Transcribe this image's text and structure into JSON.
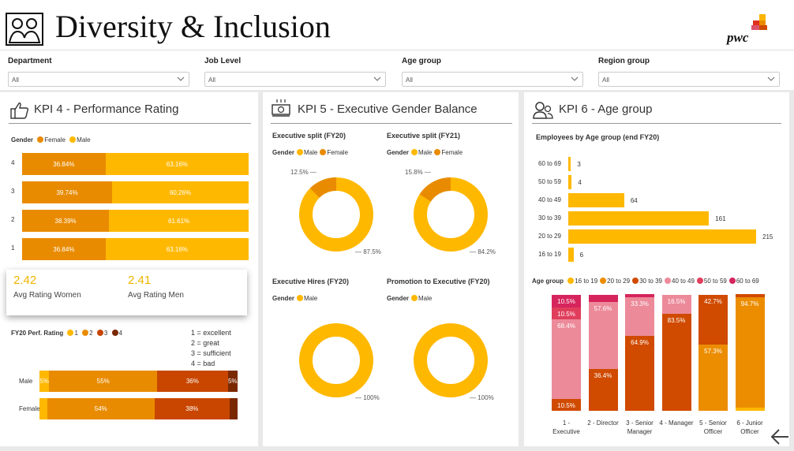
{
  "header": {
    "title": "Diversity & Inclusion",
    "brand": "pwc"
  },
  "filters": [
    {
      "label": "Department",
      "value": "All"
    },
    {
      "label": "Job Level",
      "value": "All"
    },
    {
      "label": "Age group",
      "value": "All"
    },
    {
      "label": "Region group",
      "value": "All"
    }
  ],
  "kpi4": {
    "title": "KPI 4 - Performance Rating",
    "legend_title": "Gender",
    "legend": [
      "Female",
      "Male"
    ],
    "colors": {
      "female": "#e98b00",
      "male": "#ffb800"
    },
    "rows": [
      {
        "label": "4",
        "female": "36.84%",
        "male": "63.16%",
        "female_pct": 36.84
      },
      {
        "label": "3",
        "female": "39.74%",
        "male": "60.26%",
        "female_pct": 39.74
      },
      {
        "label": "2",
        "female": "38.39%",
        "male": "61.61%",
        "female_pct": 38.39
      },
      {
        "label": "1",
        "female": "36.84%",
        "male": "63.16%",
        "female_pct": 36.84
      }
    ],
    "card": {
      "women_value": "2.42",
      "women_label": "Avg Rating Women",
      "men_value": "2.41",
      "men_label": "Avg Rating Men"
    },
    "perf_title": "FY20 Perf. Rating",
    "perf_legend": [
      "1",
      "2",
      "3",
      "4"
    ],
    "perf_colors": [
      "#ffb800",
      "#e98b00",
      "#c84600",
      "#7a2800"
    ],
    "perf_key": [
      "1 = excellent",
      "2 = great",
      "3 = sufficient",
      "4 = bad"
    ],
    "perf_rows": [
      {
        "label": "Male",
        "segments": [
          {
            "pct": 5,
            "text": "5%"
          },
          {
            "pct": 55,
            "text": "55%"
          },
          {
            "pct": 36,
            "text": "36%"
          },
          {
            "pct": 5,
            "text": "5%"
          }
        ]
      },
      {
        "label": "Female",
        "segments": [
          {
            "pct": 4,
            "text": ""
          },
          {
            "pct": 54,
            "text": "54%"
          },
          {
            "pct": 38,
            "text": "38%"
          },
          {
            "pct": 4,
            "text": ""
          }
        ]
      }
    ]
  },
  "kpi5": {
    "title": "KPI 5 - Executive Gender Balance",
    "donuts": [
      {
        "title": "Executive split (FY20)",
        "legend_title": "Gender",
        "legend": [
          "Male",
          "Female"
        ],
        "small_pct": 12.5,
        "small_label": "12.5%",
        "big_label": "87.5%"
      },
      {
        "title": "Executive split (FY21)",
        "legend_title": "Gender",
        "legend": [
          "Male",
          "Female"
        ],
        "small_pct": 15.8,
        "small_label": "15.8%",
        "big_label": "84.2%"
      },
      {
        "title": "Executive Hires (FY20)",
        "legend_title": "Gender",
        "legend": [
          "Male"
        ],
        "small_pct": 0,
        "small_label": "",
        "big_label": "100%"
      },
      {
        "title": "Promotion to Executive (FY20)",
        "legend_title": "Gender",
        "legend": [
          "Male"
        ],
        "small_pct": 0,
        "small_label": "",
        "big_label": "100%"
      }
    ]
  },
  "kpi6": {
    "title": "KPI 6 - Age group",
    "bar_title": "Employees by Age group (end FY20)",
    "bars": [
      {
        "label": "60 to 69",
        "value": 3
      },
      {
        "label": "50 to 59",
        "value": 4
      },
      {
        "label": "40 to 49",
        "value": 64
      },
      {
        "label": "30 to 39",
        "value": 161
      },
      {
        "label": "20 to 29",
        "value": 215
      },
      {
        "label": "16 to 19",
        "value": 6
      }
    ],
    "legend_title": "Age group",
    "legend": [
      "16 to 19",
      "20 to 29",
      "30 to 39",
      "40 to 49",
      "50 to 59",
      "60 to 69"
    ],
    "legend_colors": [
      "#ffb800",
      "#ec8d00",
      "#d04a00",
      "#ec8a9a",
      "#e03e5c",
      "#d6245c"
    ],
    "columns": [
      {
        "label": "1 - Executive",
        "segments": [
          {
            "age": "16 to 19",
            "pct": 0
          },
          {
            "age": "20 to 29",
            "pct": 0
          },
          {
            "age": "30 to 39",
            "pct": 10.5,
            "text": "10.5%"
          },
          {
            "age": "40 to 49",
            "pct": 68.4,
            "text": "68.4%"
          },
          {
            "age": "50 to 59",
            "pct": 10.5,
            "text": "10.5%"
          },
          {
            "age": "60 to 69",
            "pct": 10.5,
            "text": "10.5%"
          }
        ]
      },
      {
        "label": "2 - Director",
        "segments": [
          {
            "age": "16 to 19",
            "pct": 0
          },
          {
            "age": "20 to 29",
            "pct": 0
          },
          {
            "age": "30 to 39",
            "pct": 36.4,
            "text": "36.4%"
          },
          {
            "age": "40 to 49",
            "pct": 57.6,
            "text": "57.6%"
          },
          {
            "age": "50 to 59",
            "pct": 0
          },
          {
            "age": "60 to 69",
            "pct": 6.0
          }
        ]
      },
      {
        "label": "3 - Senior Manager",
        "segments": [
          {
            "age": "16 to 19",
            "pct": 0
          },
          {
            "age": "20 to 29",
            "pct": 0
          },
          {
            "age": "30 to 39",
            "pct": 64.9,
            "text": "64.9%"
          },
          {
            "age": "40 to 49",
            "pct": 33.3,
            "text": "33.3%"
          },
          {
            "age": "50 to 59",
            "pct": 0
          },
          {
            "age": "60 to 69",
            "pct": 1.8
          }
        ]
      },
      {
        "label": "4 - Manager",
        "segments": [
          {
            "age": "16 to 19",
            "pct": 0
          },
          {
            "age": "20 to 29",
            "pct": 0
          },
          {
            "age": "30 to 39",
            "pct": 83.5,
            "text": "83.5%"
          },
          {
            "age": "40 to 49",
            "pct": 16.5,
            "text": "16.5%"
          },
          {
            "age": "50 to 59",
            "pct": 0
          },
          {
            "age": "60 to 69",
            "pct": 0
          }
        ]
      },
      {
        "label": "5 - Senior Officer",
        "segments": [
          {
            "age": "16 to 19",
            "pct": 0
          },
          {
            "age": "20 to 29",
            "pct": 57.3,
            "text": "57.3%"
          },
          {
            "age": "30 to 39",
            "pct": 42.7,
            "text": "42.7%"
          },
          {
            "age": "40 to 49",
            "pct": 0
          },
          {
            "age": "50 to 59",
            "pct": 0
          },
          {
            "age": "60 to 69",
            "pct": 0
          }
        ]
      },
      {
        "label": "6 - Junior Officer",
        "segments": [
          {
            "age": "16 to 19",
            "pct": 3.0
          },
          {
            "age": "20 to 29",
            "pct": 94.7,
            "text": "94.7%"
          },
          {
            "age": "30 to 39",
            "pct": 2.3
          },
          {
            "age": "40 to 49",
            "pct": 0
          },
          {
            "age": "50 to 59",
            "pct": 0
          },
          {
            "age": "60 to 69",
            "pct": 0
          }
        ]
      }
    ]
  },
  "chart_data": [
    {
      "type": "bar",
      "title": "KPI 4 - Performance Rating",
      "categories": [
        "4",
        "3",
        "2",
        "1"
      ],
      "series": [
        {
          "name": "Female",
          "values": [
            36.84,
            39.74,
            38.39,
            36.84
          ]
        },
        {
          "name": "Male",
          "values": [
            63.16,
            60.26,
            61.61,
            63.16
          ]
        }
      ]
    },
    {
      "type": "bar",
      "title": "FY20 Perf. Rating",
      "categories": [
        "Male",
        "Female"
      ],
      "series": [
        {
          "name": "1",
          "values": [
            5,
            4
          ]
        },
        {
          "name": "2",
          "values": [
            55,
            54
          ]
        },
        {
          "name": "3",
          "values": [
            36,
            38
          ]
        },
        {
          "name": "4",
          "values": [
            5,
            4
          ]
        }
      ]
    },
    {
      "type": "pie",
      "title": "Executive split (FY20)",
      "categories": [
        "Male",
        "Female"
      ],
      "values": [
        87.5,
        12.5
      ]
    },
    {
      "type": "pie",
      "title": "Executive split (FY21)",
      "categories": [
        "Male",
        "Female"
      ],
      "values": [
        84.2,
        15.8
      ]
    },
    {
      "type": "pie",
      "title": "Executive Hires (FY20)",
      "categories": [
        "Male"
      ],
      "values": [
        100
      ]
    },
    {
      "type": "pie",
      "title": "Promotion to Executive (FY20)",
      "categories": [
        "Male"
      ],
      "values": [
        100
      ]
    },
    {
      "type": "bar",
      "title": "Employees by Age group (end FY20)",
      "categories": [
        "60 to 69",
        "50 to 59",
        "40 to 49",
        "30 to 39",
        "20 to 29",
        "16 to 19"
      ],
      "values": [
        3,
        4,
        64,
        161,
        215,
        6
      ]
    },
    {
      "type": "bar",
      "title": "Age group",
      "categories": [
        "1 - Executive",
        "2 - Director",
        "3 - Senior Manager",
        "4 - Manager",
        "5 - Senior Officer",
        "6 - Junior Officer"
      ],
      "series": [
        {
          "name": "16 to 19",
          "values": [
            0,
            0,
            0,
            0,
            0,
            3.0
          ]
        },
        {
          "name": "20 to 29",
          "values": [
            0,
            0,
            0,
            0,
            57.3,
            94.7
          ]
        },
        {
          "name": "30 to 39",
          "values": [
            10.5,
            36.4,
            64.9,
            83.5,
            42.7,
            2.3
          ]
        },
        {
          "name": "40 to 49",
          "values": [
            68.4,
            57.6,
            33.3,
            16.5,
            0,
            0
          ]
        },
        {
          "name": "50 to 59",
          "values": [
            10.5,
            0,
            0,
            0,
            0,
            0
          ]
        },
        {
          "name": "60 to 69",
          "values": [
            10.5,
            6.0,
            1.8,
            0,
            0,
            0
          ]
        }
      ]
    }
  ]
}
